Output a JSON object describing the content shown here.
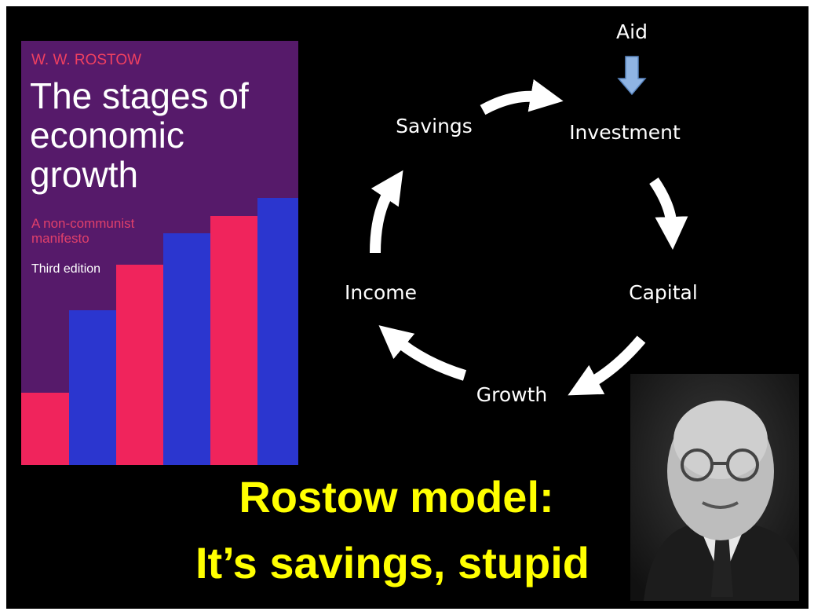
{
  "book": {
    "author": "W. W. ROSTOW",
    "title_lines": [
      "The stages of",
      "economic",
      "growth"
    ],
    "subtitle_lines": [
      "A non-communist",
      "manifesto"
    ],
    "edition": "Third edition"
  },
  "nodes": [
    {
      "label": "Savings"
    },
    {
      "label": "Investment"
    },
    {
      "label": "Capital"
    },
    {
      "label": "Growth"
    },
    {
      "label": "Income"
    }
  ],
  "input": {
    "label": "Aid"
  },
  "headline": [
    "Rostow model:",
    "It’s savings, stupid"
  ]
}
